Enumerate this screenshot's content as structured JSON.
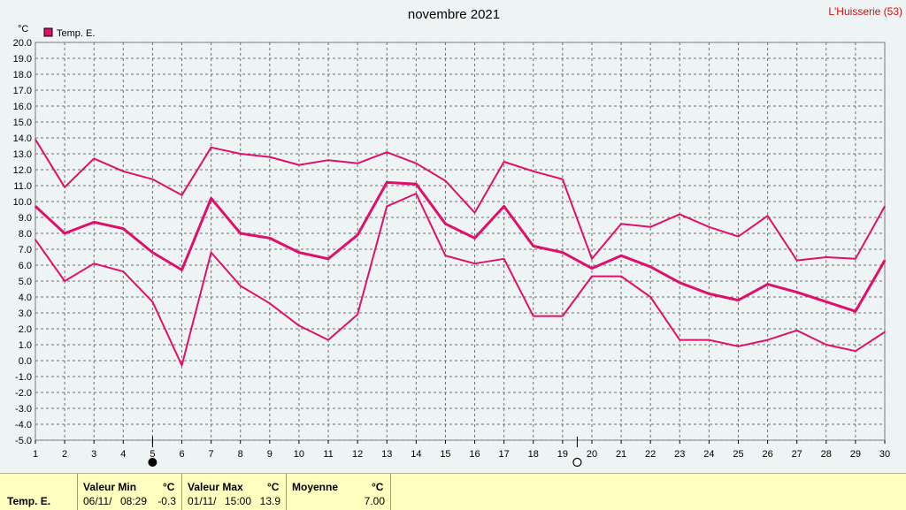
{
  "location": "L'Huisserie (53)",
  "chart_data": {
    "type": "line",
    "title": "novembre 2021",
    "ylabel": "°C",
    "ylim": [
      -5,
      20
    ],
    "yticks": [
      "-5.0",
      "-4.0",
      "-3.0",
      "-2.0",
      "-1.0",
      "0.0",
      "1.0",
      "2.0",
      "3.0",
      "4.0",
      "5.0",
      "6.0",
      "7.0",
      "8.0",
      "9.0",
      "10.0",
      "11.0",
      "12.0",
      "13.0",
      "14.0",
      "15.0",
      "16.0",
      "17.0",
      "18.0",
      "19.0",
      "20.0"
    ],
    "x": [
      1,
      2,
      3,
      4,
      5,
      6,
      7,
      8,
      9,
      10,
      11,
      12,
      13,
      14,
      15,
      16,
      17,
      18,
      19,
      20,
      21,
      22,
      23,
      24,
      25,
      26,
      27,
      28,
      29,
      30
    ],
    "grid": true,
    "legend": "top-left",
    "legend_label": "Temp. E.",
    "color": "#e0106a",
    "series": [
      {
        "values": [
          13.9,
          10.9,
          12.7,
          11.9,
          11.4,
          10.4,
          13.4,
          13.0,
          12.8,
          12.3,
          12.6,
          12.4,
          13.1,
          12.4,
          11.3,
          9.3,
          12.5,
          11.9,
          11.4,
          6.4,
          8.6,
          8.4,
          9.2,
          8.4,
          7.8,
          9.1,
          6.3,
          6.5,
          6.4,
          9.7
        ]
      },
      {
        "values": [
          9.7,
          8.0,
          8.7,
          8.3,
          6.8,
          5.7,
          10.2,
          8.0,
          7.7,
          6.8,
          6.4,
          7.9,
          11.2,
          11.1,
          8.6,
          7.7,
          9.7,
          7.2,
          6.8,
          5.8,
          6.6,
          5.9,
          4.9,
          4.2,
          3.8,
          4.8,
          4.3,
          3.7,
          3.1,
          6.3
        ]
      },
      {
        "values": [
          7.6,
          5.0,
          6.1,
          5.6,
          3.7,
          -0.3,
          6.8,
          4.7,
          3.6,
          2.2,
          1.3,
          2.9,
          9.7,
          10.5,
          6.6,
          6.1,
          6.4,
          2.8,
          2.8,
          5.3,
          5.3,
          4.0,
          1.3,
          1.3,
          0.9,
          1.3,
          1.9,
          1.0,
          0.6,
          1.8
        ]
      }
    ],
    "moon_phases": [
      {
        "day": 5,
        "phase": "new-moon"
      },
      {
        "day": 19.5,
        "phase": "full-moon"
      }
    ]
  },
  "summary": {
    "row_label": "Temp. E.",
    "min": {
      "header": "Valeur Min",
      "unit": "°C",
      "date": "06/11/",
      "time": "08:29",
      "value": "-0.3"
    },
    "max": {
      "header": "Valeur Max",
      "unit": "°C",
      "date": "01/11/",
      "time": "15:00",
      "value": "13.9"
    },
    "avg": {
      "header": "Moyenne",
      "unit": "°C",
      "value": "7.00"
    }
  }
}
